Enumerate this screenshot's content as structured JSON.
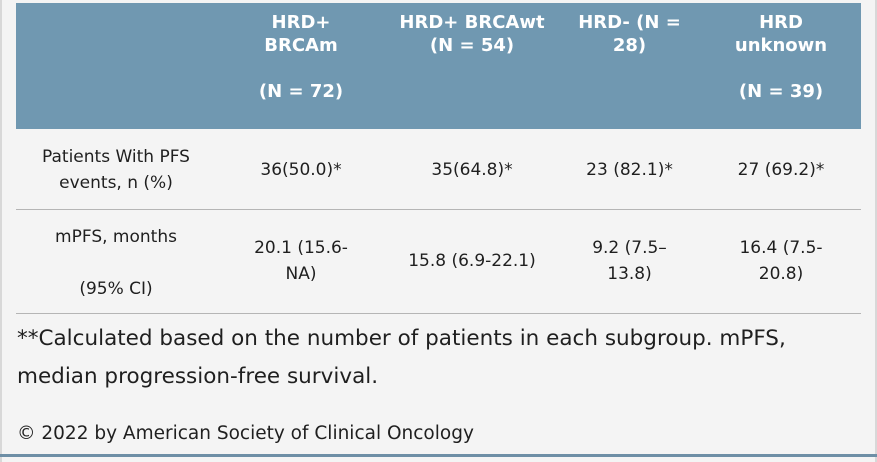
{
  "table": {
    "headers": [
      "",
      "HRD+\nBRCAm\n\n(N = 72)",
      "HRD+ BRCAwt\n(N = 54)",
      "HRD- (N =\n28)",
      "HRD\nunknown\n\n(N = 39)"
    ],
    "rows": [
      {
        "label": "Patients With PFS\nevents, n (%)",
        "cells": [
          "36(50.0)*",
          "35(64.8)*",
          "23 (82.1)*",
          "27 (69.2)*"
        ]
      },
      {
        "label": "mPFS, months\n\n(95% CI)",
        "cells": [
          "20.1 (15.6-\nNA)",
          "15.8 (6.9-22.1)",
          "9.2 (7.5–\n13.8)",
          "16.4 (7.5-\n20.8)"
        ]
      }
    ]
  },
  "footnote": "**Calculated based on the number of patients in each subgroup. mPFS, median progression-free survival.",
  "copyright": "© 2022 by American Society of Clinical Oncology",
  "colors": {
    "header_bg": "#7098b1",
    "header_text": "#ffffff",
    "body_bg": "#f4f4f4",
    "divider": "#b5b5b5"
  }
}
